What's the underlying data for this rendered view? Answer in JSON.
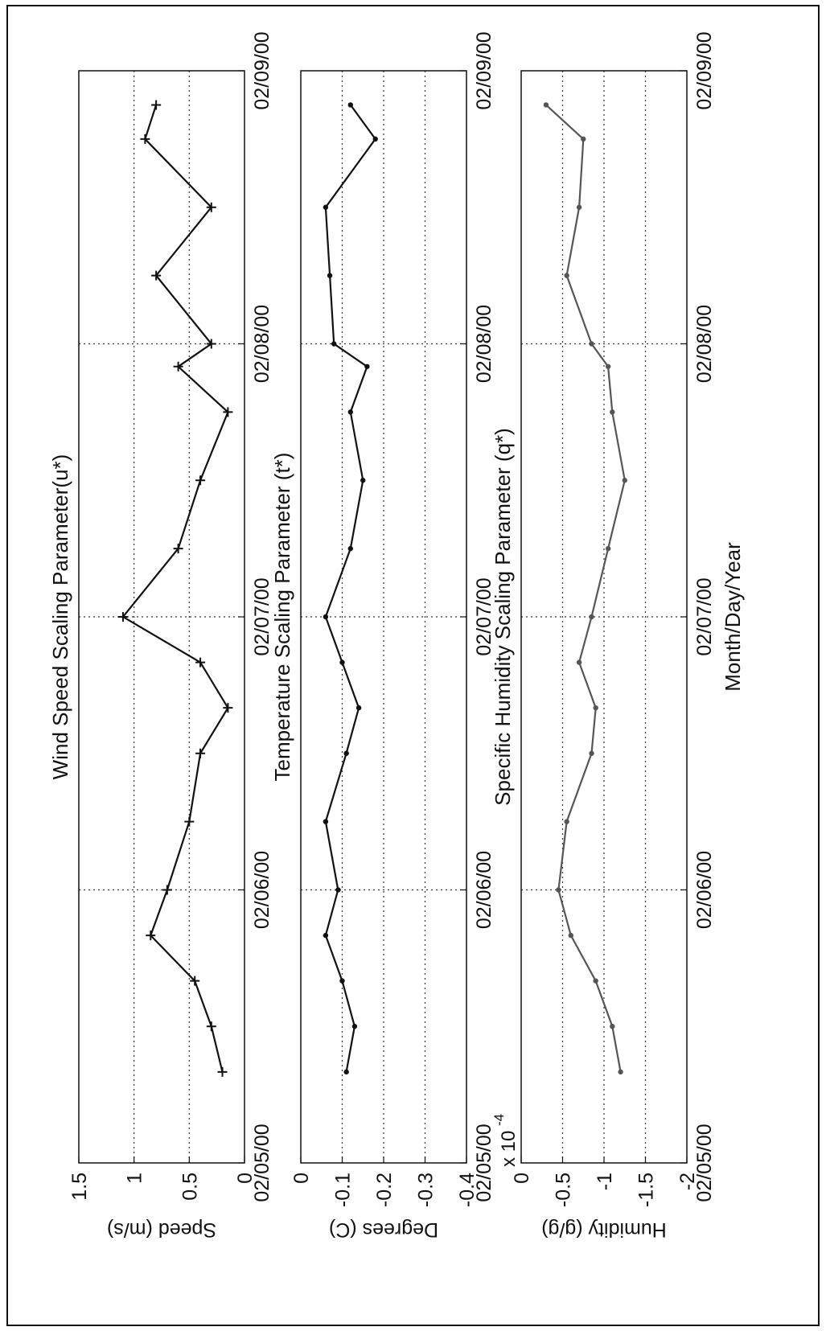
{
  "figure": {
    "xlabel": "Month/Day/Year"
  },
  "chart_data": [
    {
      "type": "line",
      "title": "Wind Speed Scaling Parameter(u*)",
      "ylabel": "Speed (m/s)",
      "xlabel": "",
      "y_exponent_label": "",
      "xlim": [
        "02/05/00",
        "02/09/00"
      ],
      "x_tick_labels": [
        "02/05/00",
        "02/06/00",
        "02/07/00",
        "02/08/00",
        "02/09/00"
      ],
      "ylim": [
        0,
        1.5
      ],
      "y_tick_labels": [
        "0",
        "0.5",
        "1",
        "1.5"
      ],
      "grid": true,
      "marker": "+",
      "color": "#111111",
      "series": [
        {
          "x": [
            "02/05/00 08:00",
            "02/05/00 12:00",
            "02/05/00 16:00",
            "02/05/00 20:00",
            "02/06/00 00:00",
            "02/06/00 06:00",
            "02/06/00 12:00",
            "02/06/00 16:00",
            "02/06/00 20:00",
            "02/07/00 00:00",
            "02/07/00 06:00",
            "02/07/00 12:00",
            "02/07/00 18:00",
            "02/07/00 22:00",
            "02/08/00 00:00",
            "02/08/00 06:00",
            "02/08/00 12:00",
            "02/08/00 18:00",
            "02/08/00 21:00"
          ],
          "y": [
            0.2,
            0.3,
            0.45,
            0.85,
            0.7,
            0.5,
            0.4,
            0.15,
            0.4,
            1.1,
            0.6,
            0.4,
            0.15,
            0.6,
            0.3,
            0.8,
            0.3,
            0.9,
            0.8
          ]
        }
      ]
    },
    {
      "type": "line",
      "title": "Temperature Scaling Parameter (t*)",
      "ylabel": "Degrees (C)",
      "xlabel": "",
      "y_exponent_label": "",
      "xlim": [
        "02/05/00",
        "02/09/00"
      ],
      "x_tick_labels": [
        "02/05/00",
        "02/06/00",
        "02/07/00",
        "02/08/00",
        "02/09/00"
      ],
      "ylim": [
        -0.4,
        0
      ],
      "y_tick_labels": [
        "0",
        "-0.1",
        "-0.2",
        "-0.3",
        "-0.4"
      ],
      "grid": true,
      "marker": ".",
      "color": "#111111",
      "series": [
        {
          "x": [
            "02/05/00 08:00",
            "02/05/00 12:00",
            "02/05/00 16:00",
            "02/05/00 20:00",
            "02/06/00 00:00",
            "02/06/00 06:00",
            "02/06/00 12:00",
            "02/06/00 16:00",
            "02/06/00 20:00",
            "02/07/00 00:00",
            "02/07/00 06:00",
            "02/07/00 12:00",
            "02/07/00 18:00",
            "02/07/00 22:00",
            "02/08/00 00:00",
            "02/08/00 06:00",
            "02/08/00 12:00",
            "02/08/00 18:00",
            "02/08/00 21:00"
          ],
          "y": [
            -0.11,
            -0.13,
            -0.1,
            -0.06,
            -0.09,
            -0.06,
            -0.11,
            -0.14,
            -0.1,
            -0.06,
            -0.12,
            -0.15,
            -0.12,
            -0.16,
            -0.08,
            -0.07,
            -0.06,
            -0.18,
            -0.12
          ]
        }
      ]
    },
    {
      "type": "line",
      "title": "Specific Humidity Scaling Parameter (q*)",
      "ylabel": "Humidity (g/g)",
      "xlabel": "Month/Day/Year",
      "y_exponent_label": "x 10",
      "y_exponent_power": "-4",
      "xlim": [
        "02/05/00",
        "02/09/00"
      ],
      "x_tick_labels": [
        "02/05/00",
        "02/06/00",
        "02/07/00",
        "02/08/00",
        "02/09/00"
      ],
      "ylim": [
        -2,
        0
      ],
      "y_tick_labels": [
        "0",
        "-0.5",
        "-1",
        "-1.5",
        "-2"
      ],
      "grid": true,
      "marker": ".",
      "color": "#555555",
      "series": [
        {
          "x": [
            "02/05/00 08:00",
            "02/05/00 12:00",
            "02/05/00 16:00",
            "02/05/00 20:00",
            "02/06/00 00:00",
            "02/06/00 06:00",
            "02/06/00 12:00",
            "02/06/00 16:00",
            "02/06/00 20:00",
            "02/07/00 00:00",
            "02/07/00 06:00",
            "02/07/00 12:00",
            "02/07/00 18:00",
            "02/07/00 22:00",
            "02/08/00 00:00",
            "02/08/00 06:00",
            "02/08/00 12:00",
            "02/08/00 18:00",
            "02/08/00 21:00"
          ],
          "y": [
            -1.2,
            -1.1,
            -0.9,
            -0.6,
            -0.45,
            -0.55,
            -0.85,
            -0.9,
            -0.7,
            -0.85,
            -1.05,
            -1.25,
            -1.1,
            -1.05,
            -0.85,
            -0.55,
            -0.7,
            -0.75,
            -0.3
          ]
        }
      ]
    }
  ]
}
